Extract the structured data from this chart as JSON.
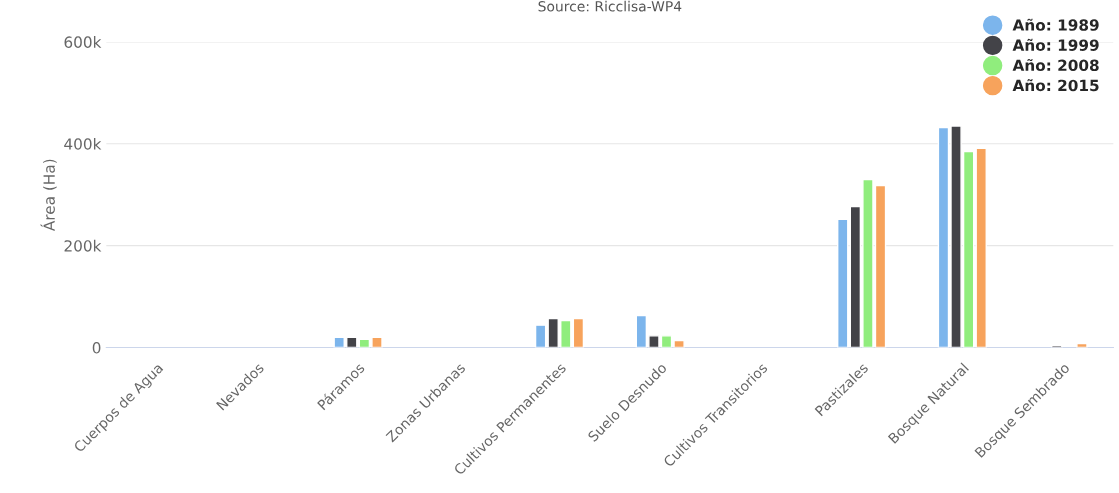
{
  "chart_data": {
    "type": "bar",
    "title": "Source: Ricclisa-WP4",
    "ylabel": "Área (Ha)",
    "categories": [
      "Cuerpos de Agua",
      "Nevados",
      "Páramos",
      "Zonas Urbanas",
      "Cultivos Permanentes",
      "Suelo Desnudo",
      "Cultivos Transitorios",
      "Pastizales",
      "Bosque Natural",
      "Bosque Sembrado"
    ],
    "series": [
      {
        "name": "Año: 1989",
        "color": "#7cb5ec",
        "values": [
          null,
          null,
          20000,
          null,
          44000,
          63000,
          null,
          252000,
          432000,
          null
        ]
      },
      {
        "name": "Año: 1999",
        "color": "#434348",
        "values": [
          null,
          null,
          20000,
          null,
          57000,
          23000,
          null,
          277000,
          435000,
          4000
        ]
      },
      {
        "name": "Año: 2008",
        "color": "#90ed7d",
        "values": [
          null,
          null,
          16000,
          null,
          53000,
          23000,
          null,
          330000,
          385000,
          null
        ]
      },
      {
        "name": "Año: 2015",
        "color": "#f7a35c",
        "values": [
          null,
          null,
          20000,
          null,
          57000,
          14000,
          null,
          318000,
          391000,
          8000
        ]
      }
    ],
    "ylim": [
      0,
      600000
    ],
    "yticks": [
      {
        "value": 0,
        "label": "0"
      },
      {
        "value": 200000,
        "label": "200k"
      },
      {
        "value": 400000,
        "label": "400k"
      },
      {
        "value": 600000,
        "label": "600k"
      }
    ],
    "grid": "y",
    "legend": "top right"
  }
}
